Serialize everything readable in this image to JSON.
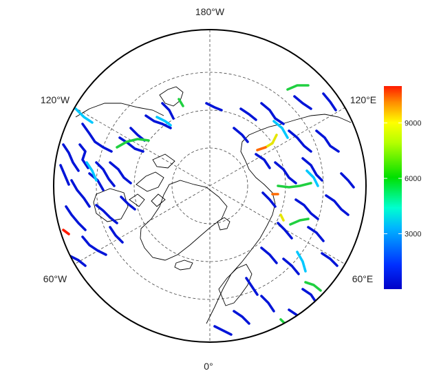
{
  "map": {
    "projection": "north-polar-stereographic",
    "longitude_labels": {
      "top": "180°W",
      "upper_left": "120°W",
      "upper_right": "120°E",
      "lower_left": "60°W",
      "lower_right": "60°E",
      "bottom": "0°"
    },
    "graticule": "dashed",
    "river_colormap": "jet"
  },
  "colorbar": {
    "min": 0,
    "max": 11000,
    "ticks": [
      "3000",
      "6000",
      "9000"
    ],
    "tick_values": [
      3000,
      6000,
      9000
    ]
  },
  "colors": {
    "low": "#0000c8",
    "mid_low": "#00c8ff",
    "mid": "#00e000",
    "mid_high": "#ffff00",
    "high": "#ff1a00"
  }
}
